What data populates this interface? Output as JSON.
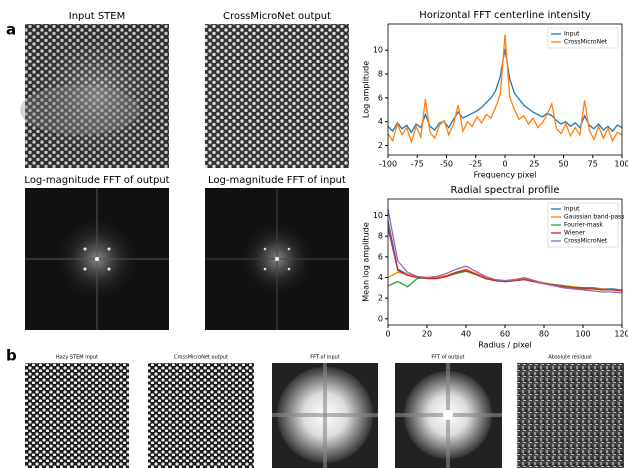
{
  "figure": {
    "panel_a_label": "a",
    "panel_b_label": "b",
    "panel_a_images": [
      "Input STEM",
      "CrossMicroNet output",
      "Log-magnitude FFT of output",
      "Log-magnitude FFT of input"
    ],
    "panel_b_images": [
      "Hazy STEM input",
      "CrossMicroNet output",
      "FFT of input",
      "FFT of output",
      "Absolute residual"
    ]
  },
  "chart_data": [
    {
      "type": "line",
      "title": "Horizontal FFT centerline intensity",
      "xlabel": "Frequency pixel",
      "ylabel": "Log amplitude",
      "x": [
        -100,
        -96,
        -92,
        -88,
        -84,
        -80,
        -76,
        -72,
        -68,
        -64,
        -60,
        -56,
        -52,
        -48,
        -44,
        -40,
        -36,
        -32,
        -28,
        -24,
        -20,
        -16,
        -12,
        -8,
        -4,
        0,
        4,
        8,
        12,
        16,
        20,
        24,
        28,
        32,
        36,
        40,
        44,
        48,
        52,
        56,
        60,
        64,
        68,
        72,
        76,
        80,
        84,
        88,
        92,
        96,
        100
      ],
      "series": [
        {
          "name": "Input",
          "color": "#1f77b4",
          "values": [
            3.6,
            3.2,
            3.9,
            3.4,
            3.7,
            3.1,
            3.8,
            3.5,
            4.6,
            3.6,
            3.3,
            3.9,
            4.0,
            3.5,
            4.2,
            4.8,
            4.3,
            4.5,
            4.7,
            4.9,
            5.2,
            5.6,
            6.0,
            6.6,
            7.8,
            10.1,
            7.6,
            6.4,
            5.9,
            5.4,
            5.1,
            4.8,
            4.6,
            4.4,
            4.7,
            4.5,
            4.1,
            3.8,
            4.0,
            3.6,
            3.9,
            3.5,
            4.5,
            3.7,
            3.4,
            3.8,
            3.3,
            3.6,
            3.2,
            3.7,
            3.5
          ]
        },
        {
          "name": "CrossMicroNet",
          "color": "#ff7f0e",
          "values": [
            3.0,
            2.4,
            3.8,
            2.9,
            3.5,
            2.3,
            3.6,
            2.7,
            5.9,
            3.1,
            2.6,
            3.7,
            4.1,
            2.9,
            3.8,
            5.4,
            3.2,
            4.0,
            3.6,
            4.4,
            3.9,
            4.6,
            4.3,
            5.2,
            6.3,
            11.3,
            6.1,
            5.0,
            4.2,
            4.5,
            3.8,
            4.3,
            3.5,
            3.9,
            4.6,
            5.5,
            3.4,
            3.0,
            3.8,
            2.8,
            3.5,
            2.9,
            5.8,
            3.3,
            2.5,
            3.6,
            2.6,
            3.4,
            2.4,
            3.1,
            2.9
          ]
        }
      ],
      "xlim": [
        -100,
        100
      ],
      "xticks": [
        -100,
        -75,
        -50,
        -25,
        0,
        25,
        50,
        75,
        100
      ],
      "ylim": [
        1.2,
        12.2
      ],
      "yticks": [
        2,
        4,
        6,
        8,
        10
      ],
      "legend": "upper right"
    },
    {
      "type": "line",
      "title": "Radial spectral profile",
      "xlabel": "Radius / pixel",
      "ylabel": "Mean log amplitude",
      "x": [
        0,
        5,
        10,
        15,
        20,
        25,
        30,
        35,
        40,
        45,
        50,
        55,
        60,
        65,
        70,
        75,
        80,
        85,
        90,
        95,
        100,
        105,
        110,
        115,
        120
      ],
      "series": [
        {
          "name": "Input",
          "color": "#1f77b4",
          "values": [
            9.5,
            4.8,
            4.3,
            4.0,
            3.9,
            3.9,
            4.1,
            4.4,
            4.6,
            4.3,
            3.9,
            3.7,
            3.6,
            3.7,
            3.8,
            3.6,
            3.4,
            3.3,
            3.2,
            3.1,
            3.0,
            3.0,
            2.9,
            2.9,
            2.8
          ]
        },
        {
          "name": "Gaussian band-pass",
          "color": "#ff7f0e",
          "values": [
            4.0,
            4.5,
            4.3,
            4.1,
            4.0,
            4.0,
            4.2,
            4.5,
            4.8,
            4.4,
            4.0,
            3.8,
            3.7,
            3.8,
            3.9,
            3.7,
            3.5,
            3.3,
            3.2,
            3.1,
            3.0,
            2.9,
            2.9,
            2.8,
            2.8
          ]
        },
        {
          "name": "Fourier-mask",
          "color": "#2ca02c",
          "values": [
            3.2,
            3.6,
            3.1,
            3.9,
            4.0,
            3.9,
            4.1,
            4.4,
            4.6,
            4.3,
            3.9,
            3.7,
            3.6,
            3.7,
            3.8,
            3.6,
            3.4,
            3.3,
            3.2,
            3.0,
            2.9,
            2.9,
            2.8,
            2.8,
            2.7
          ]
        },
        {
          "name": "Wiener",
          "color": "#d62728",
          "values": [
            8.8,
            4.7,
            4.2,
            4.0,
            3.9,
            3.9,
            4.1,
            4.5,
            4.7,
            4.3,
            3.9,
            3.7,
            3.6,
            3.7,
            3.8,
            3.6,
            3.4,
            3.3,
            3.1,
            3.0,
            3.0,
            2.9,
            2.8,
            2.8,
            2.7
          ]
        },
        {
          "name": "CrossMicroNet",
          "color": "#9467bd",
          "values": [
            10.6,
            5.6,
            4.5,
            4.1,
            4.0,
            4.1,
            4.4,
            4.8,
            5.1,
            4.6,
            4.1,
            3.8,
            3.7,
            3.8,
            4.0,
            3.7,
            3.4,
            3.2,
            3.0,
            2.9,
            2.8,
            2.7,
            2.6,
            2.6,
            2.5
          ]
        }
      ],
      "xlim": [
        0,
        120
      ],
      "xticks": [
        0,
        20,
        40,
        60,
        80,
        100,
        120
      ],
      "ylim": [
        -0.6,
        11.6
      ],
      "yticks": [
        0,
        2,
        4,
        6,
        8,
        10
      ],
      "legend": "upper right"
    }
  ]
}
